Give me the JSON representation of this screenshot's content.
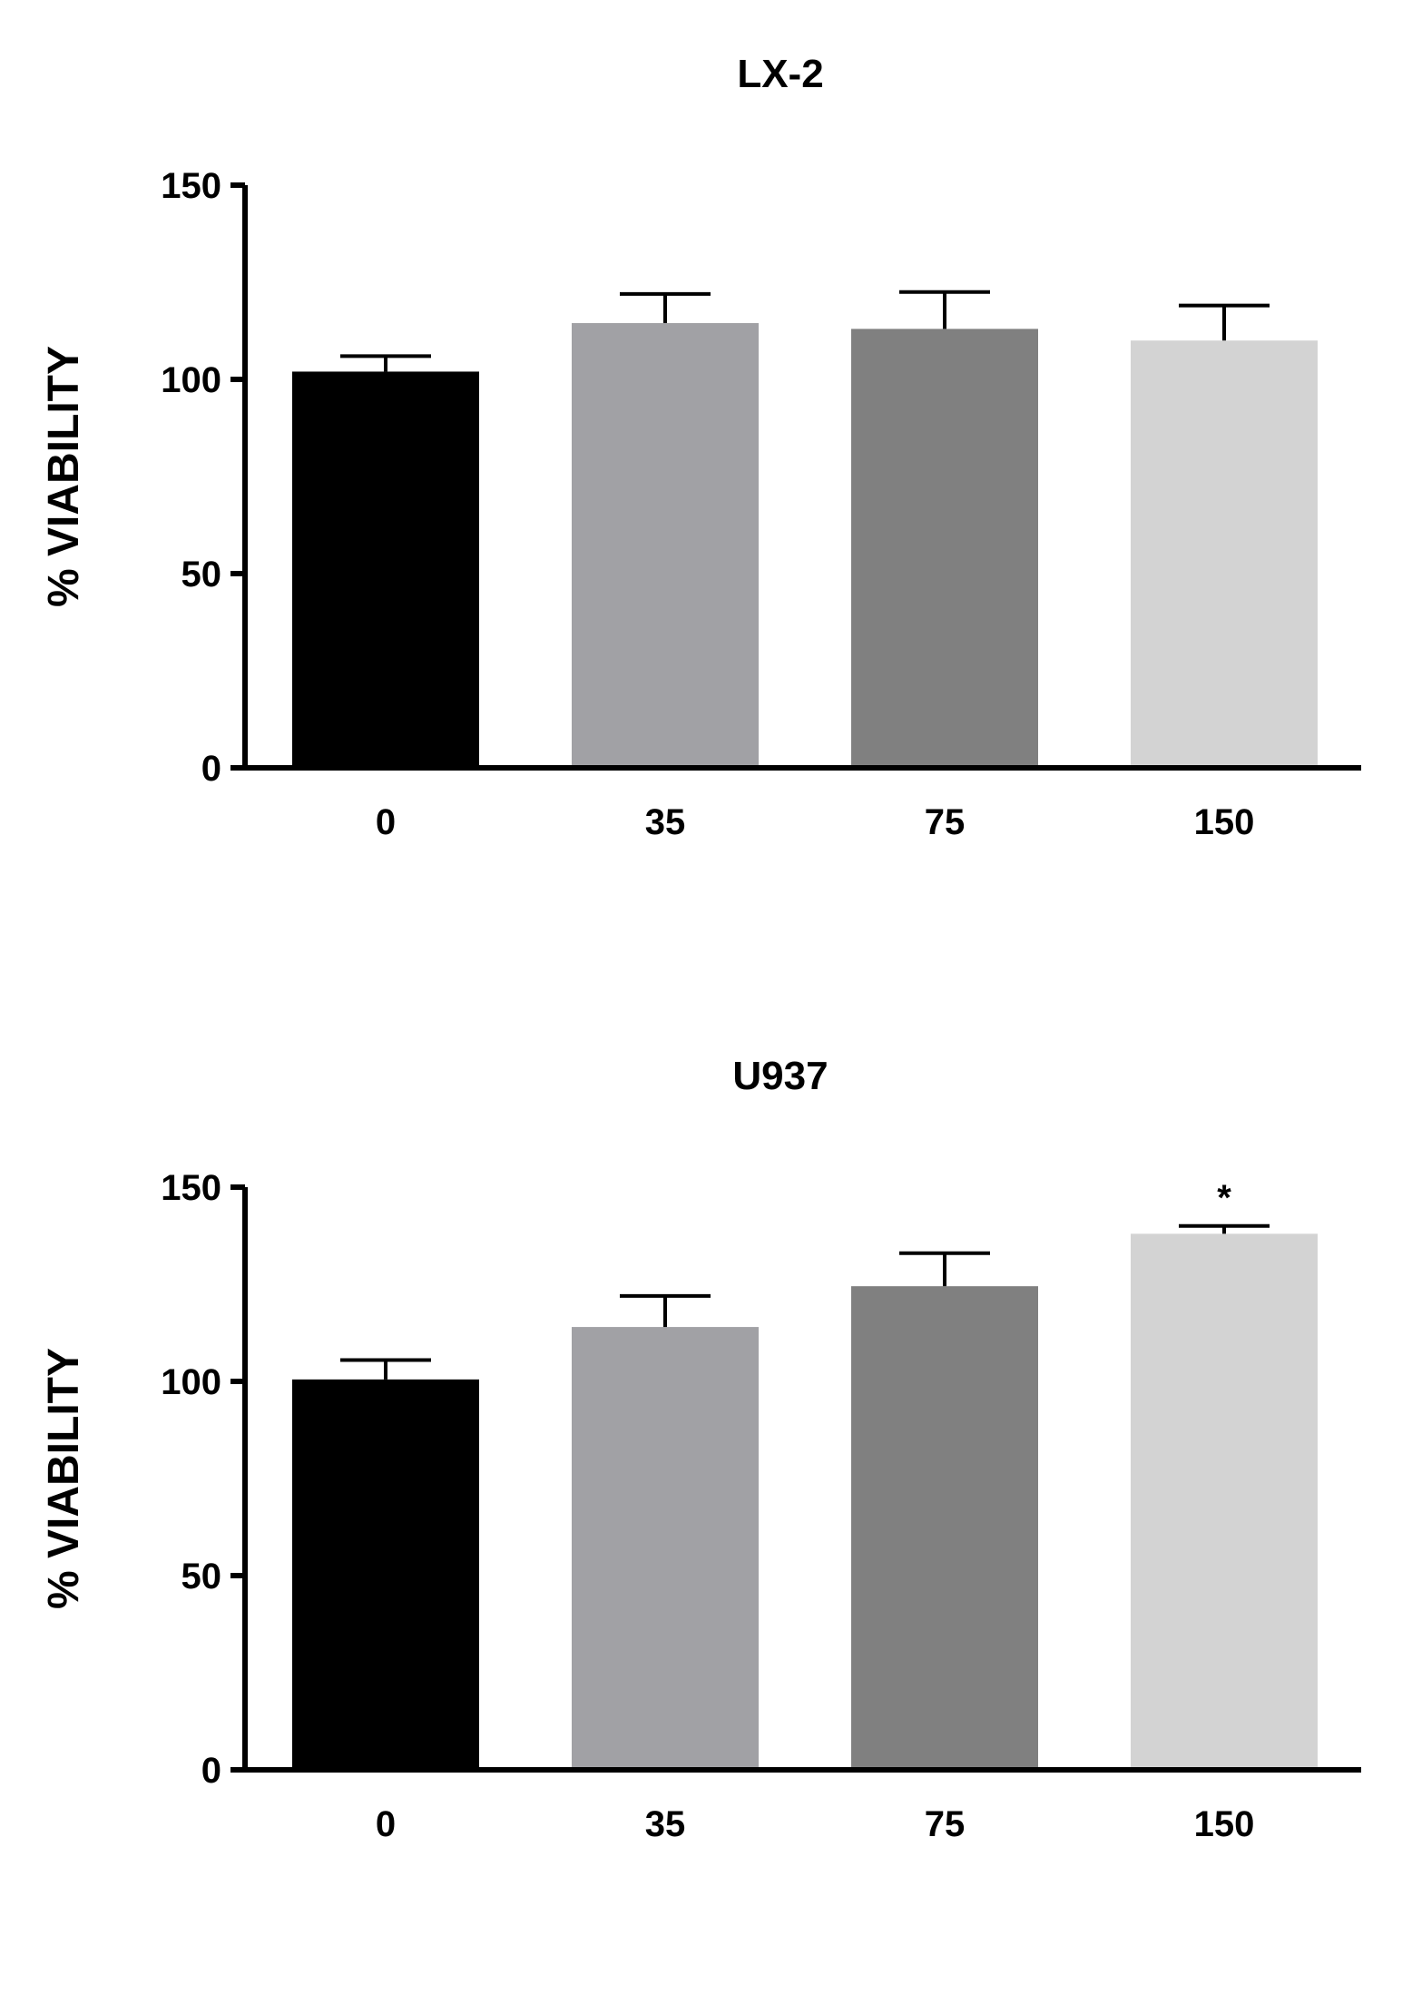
{
  "chart_data": [
    {
      "type": "bar",
      "title": "LX-2",
      "xlabel": "",
      "ylabel": "% VIABILITY",
      "categories": [
        "0",
        "35",
        "75",
        "150"
      ],
      "values": [
        102,
        114.5,
        113,
        110
      ],
      "errors": [
        4,
        7.5,
        9.5,
        9
      ],
      "bar_colors": [
        "#000000",
        "#a1a1a5",
        "#808080",
        "#d3d3d3"
      ],
      "ylim": [
        0,
        150
      ],
      "yticks": [
        0,
        50,
        100,
        150
      ],
      "annotations": []
    },
    {
      "type": "bar",
      "title": "U937",
      "xlabel": "",
      "ylabel": "% VIABILITY",
      "categories": [
        "0",
        "35",
        "75",
        "150"
      ],
      "values": [
        100.5,
        114,
        124.5,
        138
      ],
      "errors": [
        5,
        8,
        8.5,
        2
      ],
      "bar_colors": [
        "#000000",
        "#a1a1a5",
        "#808080",
        "#d3d3d3"
      ],
      "ylim": [
        0,
        150
      ],
      "yticks": [
        0,
        50,
        100,
        150
      ],
      "annotations": [
        {
          "category": "150",
          "text": "*"
        }
      ]
    }
  ]
}
